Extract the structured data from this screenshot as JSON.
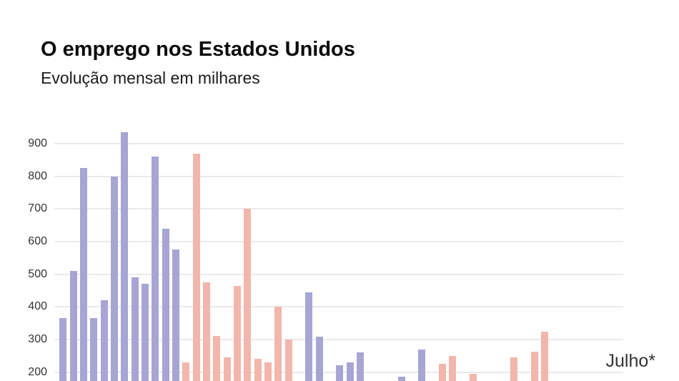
{
  "header": {
    "title": "O emprego nos Estados Unidos",
    "subtitle": "Evolução mensal em milhares"
  },
  "chart_data": {
    "type": "bar",
    "title": "O emprego nos Estados Unidos",
    "subtitle": "Evolução mensal em milhares",
    "ylabel": "",
    "xlabel": "",
    "y_ticks": [
      900,
      800,
      700,
      600,
      500,
      400,
      300,
      200
    ],
    "ylim_visible": [
      175,
      950
    ],
    "grid": "horizontal-only",
    "legend": "none",
    "end_label": "Julho*",
    "colors": {
      "a": "#a6a5d3",
      "b": "#f2b6ac",
      "gridline": "#eaeaea",
      "tick_text": "#333333",
      "title_text": "#0a0a0a"
    },
    "bars": [
      {
        "v": 365,
        "c": "a"
      },
      {
        "v": 510,
        "c": "a"
      },
      {
        "v": 825,
        "c": "a"
      },
      {
        "v": 365,
        "c": "a"
      },
      {
        "v": 420,
        "c": "a"
      },
      {
        "v": 800,
        "c": "a"
      },
      {
        "v": 935,
        "c": "a"
      },
      {
        "v": 490,
        "c": "a"
      },
      {
        "v": 470,
        "c": "a"
      },
      {
        "v": 860,
        "c": "a"
      },
      {
        "v": 640,
        "c": "a"
      },
      {
        "v": 575,
        "c": "a"
      },
      {
        "v": 230,
        "c": "b"
      },
      {
        "v": 870,
        "c": "b"
      },
      {
        "v": 475,
        "c": "b"
      },
      {
        "v": 310,
        "c": "b"
      },
      {
        "v": 245,
        "c": "b"
      },
      {
        "v": 465,
        "c": "b"
      },
      {
        "v": 700,
        "c": "b"
      },
      {
        "v": 240,
        "c": "b"
      },
      {
        "v": 230,
        "c": "b"
      },
      {
        "v": 400,
        "c": "b"
      },
      {
        "v": 300,
        "c": "b"
      },
      {
        "v": null,
        "c": "b"
      },
      {
        "v": 445,
        "c": "a"
      },
      {
        "v": 308,
        "c": "a"
      },
      {
        "v": null,
        "c": "a"
      },
      {
        "v": 220,
        "c": "a"
      },
      {
        "v": 230,
        "c": "a"
      },
      {
        "v": 260,
        "c": "a"
      },
      {
        "v": null,
        "c": "a"
      },
      {
        "v": null,
        "c": "a"
      },
      {
        "v": null,
        "c": "a"
      },
      {
        "v": 185,
        "c": "a"
      },
      {
        "v": null,
        "c": "a"
      },
      {
        "v": 270,
        "c": "a"
      },
      {
        "v": null,
        "c": "b"
      },
      {
        "v": 225,
        "c": "b"
      },
      {
        "v": 250,
        "c": "b"
      },
      {
        "v": null,
        "c": "b"
      },
      {
        "v": 195,
        "c": "b"
      },
      {
        "v": null,
        "c": "b"
      },
      {
        "v": null,
        "c": "b"
      },
      {
        "v": null,
        "c": "b"
      },
      {
        "v": 245,
        "c": "b"
      },
      {
        "v": null,
        "c": "b"
      },
      {
        "v": 262,
        "c": "b"
      },
      {
        "v": 325,
        "c": "b"
      },
      {
        "v": null,
        "c": "a"
      },
      {
        "v": null,
        "c": "a"
      },
      {
        "v": null,
        "c": "a"
      },
      {
        "v": null,
        "c": "a"
      },
      {
        "v": null,
        "c": "a"
      },
      {
        "v": null,
        "c": "a"
      },
      {
        "v": null,
        "c": "a"
      }
    ]
  }
}
